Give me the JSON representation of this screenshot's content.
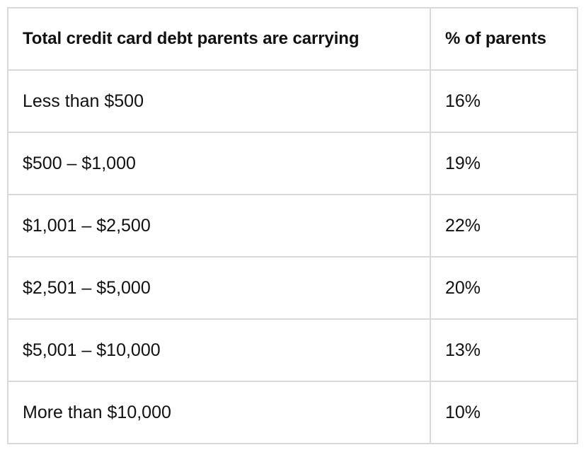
{
  "table": {
    "headers": {
      "range": "Total credit card debt parents are carrying",
      "percent": "% of parents"
    },
    "rows": [
      {
        "range": "Less than $500",
        "percent": "16%"
      },
      {
        "range": "$500 – $1,000",
        "percent": "19%"
      },
      {
        "range": "$1,001 – $2,500",
        "percent": "22%"
      },
      {
        "range": "$2,501 – $5,000",
        "percent": "20%"
      },
      {
        "range": "$5,001 – $10,000",
        "percent": "13%"
      },
      {
        "range": "More than $10,000",
        "percent": "10%"
      }
    ]
  },
  "colors": {
    "border": "#d9d9d9",
    "text": "#111111",
    "background": "#ffffff"
  }
}
